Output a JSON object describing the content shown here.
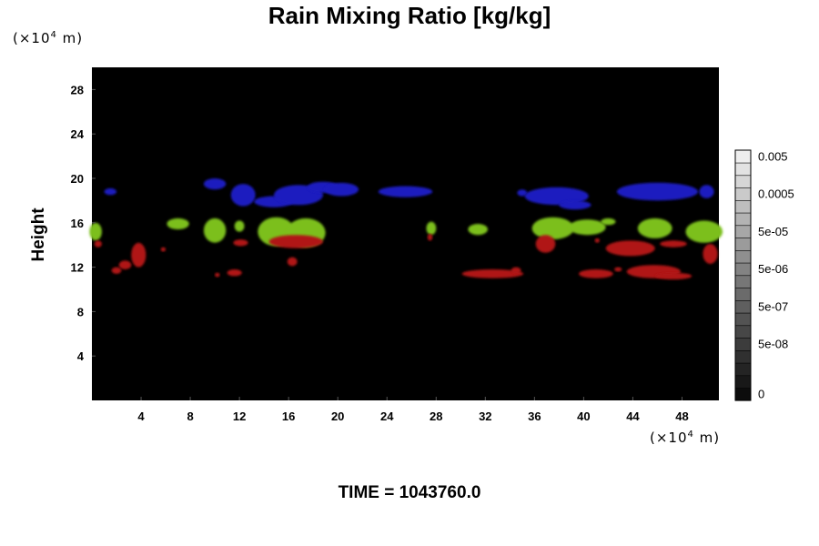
{
  "chart_data": {
    "type": "heatmap",
    "title": "Rain Mixing Ratio [kg/kg]",
    "xlabel": "",
    "ylabel": "Height",
    "x_unit_prefix": "(×10",
    "x_unit_exp": "4",
    "x_unit_suffix": " m)",
    "y_unit_prefix": "(×10",
    "y_unit_exp": "4",
    "y_unit_suffix": " m)",
    "xlim": [
      0,
      51
    ],
    "ylim": [
      0,
      30
    ],
    "xticks": [
      4,
      8,
      12,
      16,
      20,
      24,
      28,
      32,
      36,
      40,
      44,
      48
    ],
    "yticks": [
      4,
      8,
      12,
      16,
      20,
      24,
      28
    ],
    "background_color": "#000000",
    "colorbar": {
      "levels": 20,
      "labels": [
        {
          "value": "0.005",
          "level": 19
        },
        {
          "value": "0.0005",
          "level": 16
        },
        {
          "value": "5e-05",
          "level": 13
        },
        {
          "value": "5e-06",
          "level": 10
        },
        {
          "value": "5e-07",
          "level": 7
        },
        {
          "value": "5e-08",
          "level": 4
        },
        {
          "value": "0",
          "level": 0
        }
      ]
    },
    "regions": [
      {
        "color": "#1a1abf",
        "cells": [
          {
            "x": 1.5,
            "y": 18.8,
            "rx": 0.5,
            "ry": 0.3
          },
          {
            "x": 10,
            "y": 19.5,
            "rx": 0.9,
            "ry": 0.5
          },
          {
            "x": 12.3,
            "y": 18.5,
            "rx": 1.0,
            "ry": 1.0
          },
          {
            "x": 14.8,
            "y": 17.9,
            "rx": 1.6,
            "ry": 0.5
          },
          {
            "x": 16.8,
            "y": 18.5,
            "rx": 2.0,
            "ry": 0.9
          },
          {
            "x": 18.8,
            "y": 19.2,
            "rx": 1.3,
            "ry": 0.5
          },
          {
            "x": 20.3,
            "y": 19.0,
            "rx": 1.4,
            "ry": 0.6
          },
          {
            "x": 25.5,
            "y": 18.8,
            "rx": 2.2,
            "ry": 0.5
          },
          {
            "x": 35.0,
            "y": 18.7,
            "rx": 0.4,
            "ry": 0.3
          },
          {
            "x": 37.8,
            "y": 18.4,
            "rx": 2.6,
            "ry": 0.8
          },
          {
            "x": 39.3,
            "y": 17.6,
            "rx": 1.3,
            "ry": 0.4
          },
          {
            "x": 46.0,
            "y": 18.8,
            "rx": 3.3,
            "ry": 0.8
          },
          {
            "x": 50.0,
            "y": 18.8,
            "rx": 0.6,
            "ry": 0.6
          }
        ]
      },
      {
        "color": "#7bbf1c",
        "cells": [
          {
            "x": 0.3,
            "y": 15.2,
            "rx": 0.5,
            "ry": 0.8
          },
          {
            "x": 7.0,
            "y": 15.9,
            "rx": 0.9,
            "ry": 0.5
          },
          {
            "x": 10.0,
            "y": 15.3,
            "rx": 0.9,
            "ry": 1.1
          },
          {
            "x": 12.0,
            "y": 15.7,
            "rx": 0.4,
            "ry": 0.5
          },
          {
            "x": 15.0,
            "y": 15.2,
            "rx": 1.5,
            "ry": 1.3
          },
          {
            "x": 17.4,
            "y": 15.1,
            "rx": 1.6,
            "ry": 1.3
          },
          {
            "x": 27.6,
            "y": 15.5,
            "rx": 0.4,
            "ry": 0.6
          },
          {
            "x": 31.4,
            "y": 15.4,
            "rx": 0.8,
            "ry": 0.5
          },
          {
            "x": 37.5,
            "y": 15.5,
            "rx": 1.7,
            "ry": 1.0
          },
          {
            "x": 40.3,
            "y": 15.6,
            "rx": 1.5,
            "ry": 0.7
          },
          {
            "x": 42.0,
            "y": 16.1,
            "rx": 0.6,
            "ry": 0.3
          },
          {
            "x": 45.8,
            "y": 15.5,
            "rx": 1.4,
            "ry": 0.9
          },
          {
            "x": 49.8,
            "y": 15.2,
            "rx": 1.5,
            "ry": 1.0
          }
        ]
      },
      {
        "color": "#b01414",
        "cells": [
          {
            "x": 0.5,
            "y": 14.1,
            "rx": 0.3,
            "ry": 0.3
          },
          {
            "x": 3.8,
            "y": 13.1,
            "rx": 0.6,
            "ry": 1.1
          },
          {
            "x": 2.7,
            "y": 12.2,
            "rx": 0.5,
            "ry": 0.4
          },
          {
            "x": 2.0,
            "y": 11.7,
            "rx": 0.4,
            "ry": 0.3
          },
          {
            "x": 5.8,
            "y": 13.6,
            "rx": 0.2,
            "ry": 0.2
          },
          {
            "x": 12.1,
            "y": 14.2,
            "rx": 0.6,
            "ry": 0.3
          },
          {
            "x": 11.6,
            "y": 11.5,
            "rx": 0.6,
            "ry": 0.3
          },
          {
            "x": 10.2,
            "y": 11.3,
            "rx": 0.2,
            "ry": 0.2
          },
          {
            "x": 16.3,
            "y": 12.5,
            "rx": 0.4,
            "ry": 0.4
          },
          {
            "x": 16.6,
            "y": 14.3,
            "rx": 2.2,
            "ry": 0.6
          },
          {
            "x": 27.5,
            "y": 14.7,
            "rx": 0.2,
            "ry": 0.3
          },
          {
            "x": 32.6,
            "y": 11.4,
            "rx": 2.5,
            "ry": 0.4
          },
          {
            "x": 34.5,
            "y": 11.7,
            "rx": 0.4,
            "ry": 0.3
          },
          {
            "x": 36.9,
            "y": 14.1,
            "rx": 0.8,
            "ry": 0.8
          },
          {
            "x": 41.0,
            "y": 11.4,
            "rx": 1.4,
            "ry": 0.4
          },
          {
            "x": 42.8,
            "y": 11.8,
            "rx": 0.3,
            "ry": 0.2
          },
          {
            "x": 43.8,
            "y": 13.7,
            "rx": 2.0,
            "ry": 0.7
          },
          {
            "x": 45.7,
            "y": 11.6,
            "rx": 2.2,
            "ry": 0.6
          },
          {
            "x": 47.3,
            "y": 14.1,
            "rx": 1.1,
            "ry": 0.3
          },
          {
            "x": 47.3,
            "y": 11.2,
            "rx": 1.5,
            "ry": 0.3
          },
          {
            "x": 50.3,
            "y": 13.2,
            "rx": 0.6,
            "ry": 0.9
          },
          {
            "x": 41.1,
            "y": 14.4,
            "rx": 0.2,
            "ry": 0.2
          }
        ]
      }
    ]
  },
  "footer": {
    "time_text": "TIME = 1043760.0"
  }
}
